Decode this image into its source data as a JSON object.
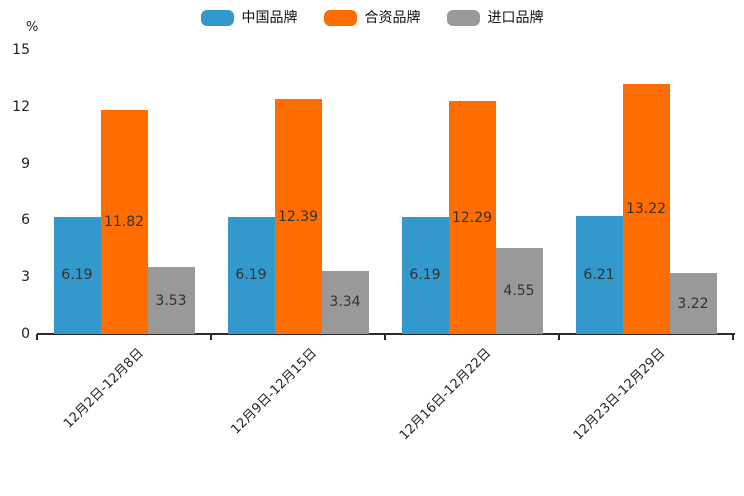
{
  "chart_data": {
    "type": "bar",
    "title": "",
    "unit_label": "%",
    "categories": [
      "12月2日-12月8日",
      "12月9日-12月15日",
      "12月16日-12月22日",
      "12月23日-12月29日"
    ],
    "series": [
      {
        "name": "中国品牌",
        "color": "#3399CC",
        "values": [
          6.19,
          6.19,
          6.19,
          6.21
        ]
      },
      {
        "name": "合资品牌",
        "color": "#FF6D00",
        "values": [
          11.82,
          12.39,
          12.29,
          13.22
        ]
      },
      {
        "name": "进口品牌",
        "color": "#999999",
        "values": [
          3.53,
          3.34,
          4.55,
          3.22
        ]
      }
    ],
    "ylim": [
      0,
      15
    ],
    "yticks": [
      0,
      3,
      6,
      9,
      12,
      15
    ],
    "legend_position": "top",
    "grid": false,
    "value_label_color": "#333333",
    "axis_line_color": "#2b2b2b"
  }
}
